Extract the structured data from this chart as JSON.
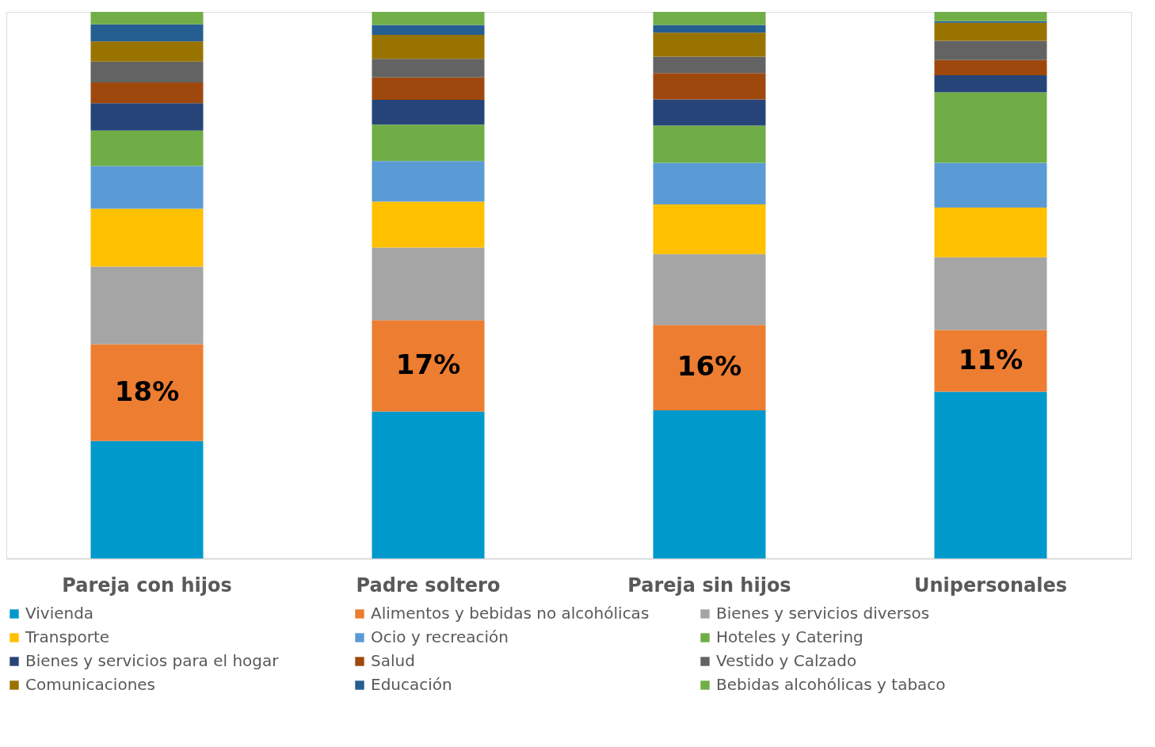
{
  "chart_data": {
    "type": "bar",
    "stacked": true,
    "categories": [
      "Pareja con hijos",
      "Padre soltero",
      "Pareja sin hijos",
      "Unipersonales"
    ],
    "ylim": [
      0,
      100
    ],
    "tick_labels": "x",
    "legend": "bottom",
    "series": [
      {
        "name": "Vivienda",
        "color": "#0099cc",
        "values": [
          21.5,
          26.9,
          27.1,
          30.5
        ]
      },
      {
        "name": "Alimentos y bebidas no alcohólicas",
        "color": "#ed7d31",
        "values": [
          17.7,
          16.7,
          15.6,
          11.3
        ],
        "value_labels": [
          "18%",
          "17%",
          "16%",
          "11%"
        ]
      },
      {
        "name": "Bienes y servicios diversos",
        "color": "#a5a5a5",
        "values": [
          14.2,
          13.3,
          13.0,
          13.3
        ]
      },
      {
        "name": "Transporte",
        "color": "#ffc000",
        "values": [
          10.6,
          8.4,
          9.1,
          9.1
        ]
      },
      {
        "name": "Ocio y recreación",
        "color": "#5b9bd5",
        "values": [
          7.8,
          7.4,
          7.6,
          8.2
        ]
      },
      {
        "name": "Hoteles y Catering",
        "color": "#70ad47",
        "values": [
          6.5,
          6.7,
          6.8,
          12.9
        ]
      },
      {
        "name": "Bienes y servicios para el hogar",
        "color": "#264478",
        "values": [
          5.0,
          4.5,
          4.8,
          3.1
        ]
      },
      {
        "name": "Salud",
        "color": "#9e480e",
        "values": [
          3.8,
          4.1,
          4.8,
          2.8
        ]
      },
      {
        "name": "Vestido y Calzado",
        "color": "#636363",
        "values": [
          3.8,
          3.4,
          3.0,
          3.5
        ]
      },
      {
        "name": "Comunicaciones",
        "color": "#997300",
        "values": [
          3.7,
          4.4,
          4.4,
          3.3
        ]
      },
      {
        "name": "Educación",
        "color": "#255e91",
        "values": [
          3.1,
          1.8,
          1.4,
          0.3
        ]
      },
      {
        "name": "Bebidas alcohólicas y tabaco",
        "color": "#72ae48",
        "values": [
          2.3,
          2.4,
          2.4,
          1.7
        ]
      }
    ]
  }
}
